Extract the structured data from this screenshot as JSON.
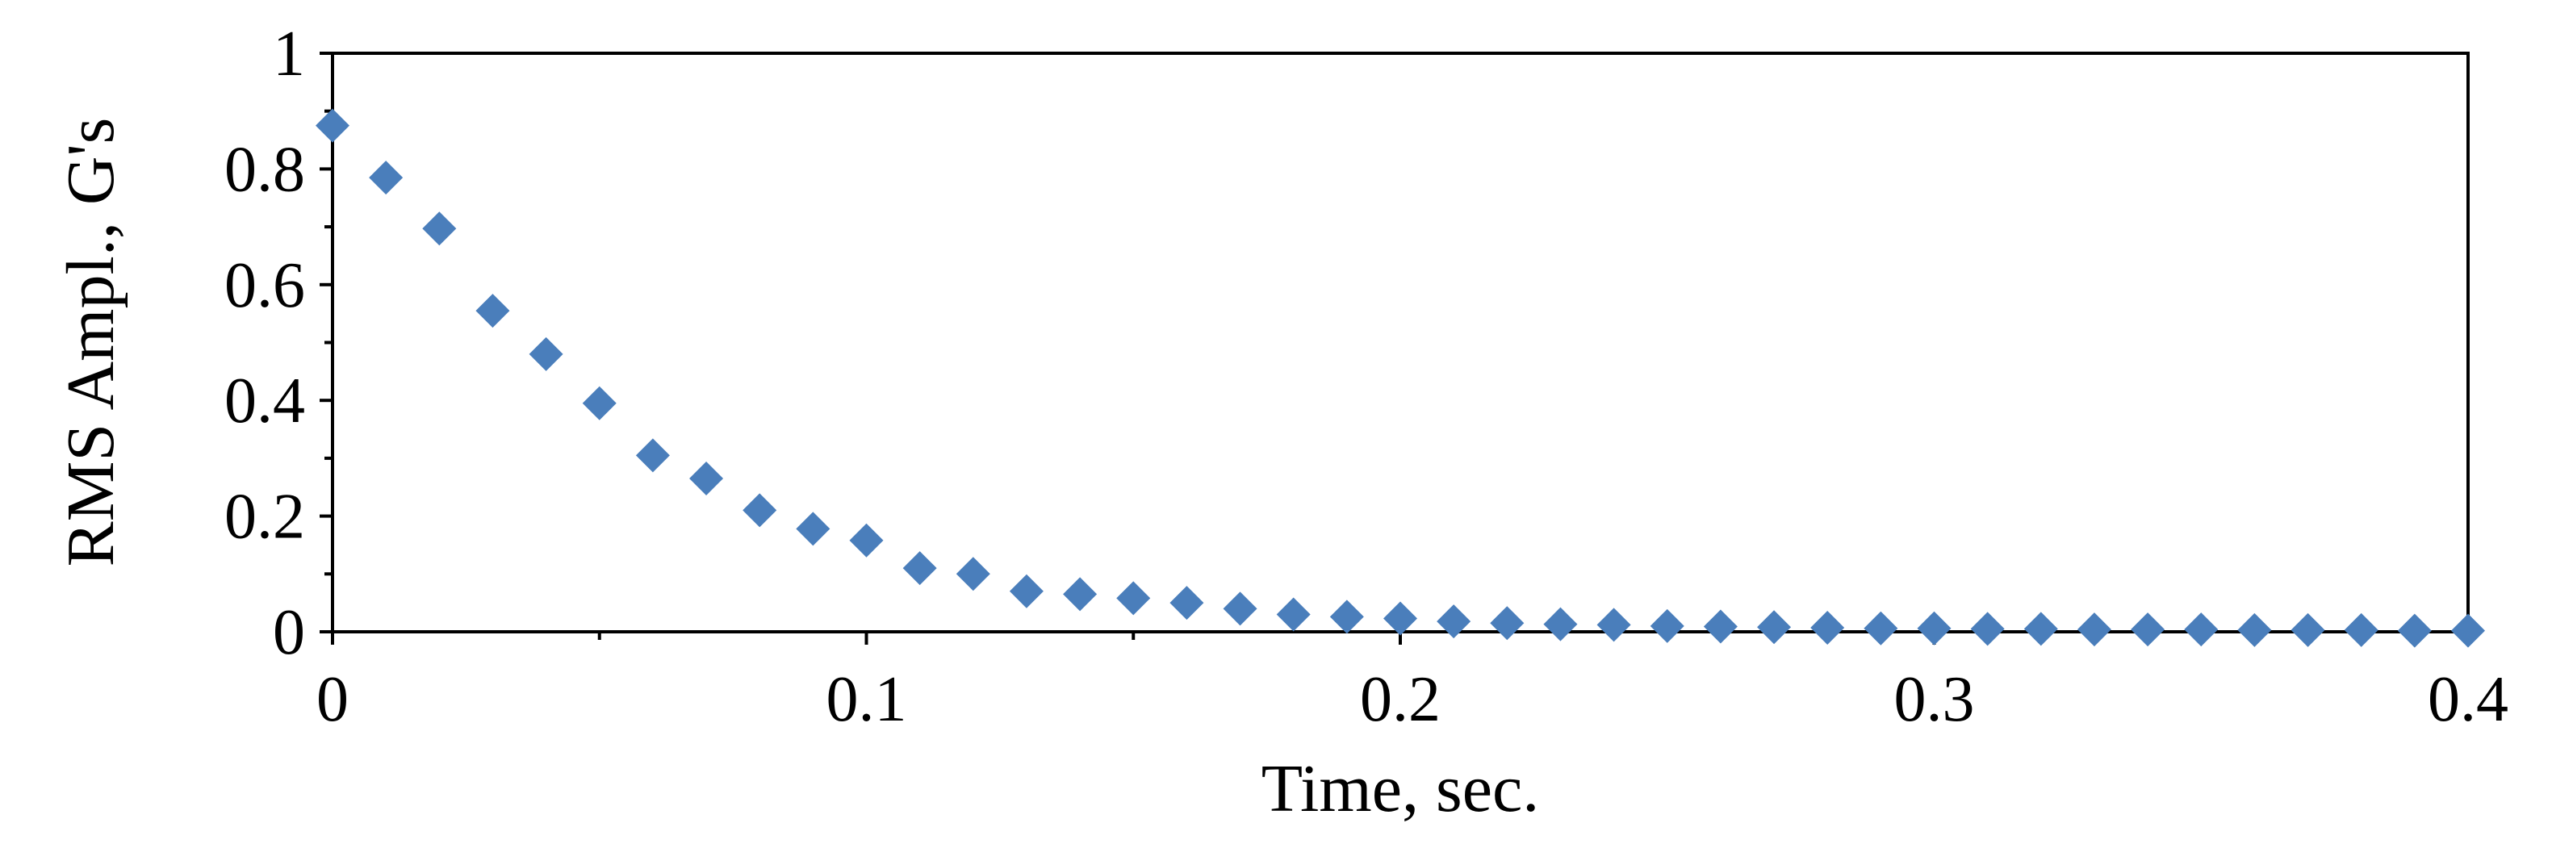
{
  "chart_data": {
    "type": "scatter",
    "title": "",
    "xlabel": "Time, sec.",
    "ylabel": "RMS Ampl., G's",
    "xlim": [
      0,
      0.4
    ],
    "ylim": [
      0,
      1
    ],
    "x_ticks": [
      "0",
      "0.1",
      "0.2",
      "0.3",
      "0.4"
    ],
    "y_ticks": [
      "0",
      "0.2",
      "0.4",
      "0.6",
      "0.8",
      "1"
    ],
    "grid": false,
    "legend": "none",
    "marker": "diamond",
    "marker_color": "#4a7ebb",
    "series": [
      {
        "x": [
          0,
          0.01,
          0.02,
          0.03,
          0.04,
          0.05,
          0.06,
          0.07,
          0.08,
          0.09,
          0.1,
          0.11,
          0.12,
          0.13,
          0.14,
          0.15,
          0.16,
          0.17,
          0.18,
          0.19,
          0.2,
          0.21,
          0.22,
          0.23,
          0.24,
          0.25,
          0.26,
          0.27,
          0.28,
          0.29,
          0.3,
          0.31,
          0.32,
          0.33,
          0.34,
          0.35,
          0.36,
          0.37,
          0.38,
          0.39,
          0.4
        ],
        "y": [
          0.875,
          0.785,
          0.697,
          0.555,
          0.48,
          0.395,
          0.305,
          0.265,
          0.21,
          0.178,
          0.158,
          0.11,
          0.1,
          0.07,
          0.065,
          0.058,
          0.05,
          0.04,
          0.03,
          0.026,
          0.023,
          0.018,
          0.015,
          0.013,
          0.012,
          0.01,
          0.009,
          0.008,
          0.007,
          0.006,
          0.006,
          0.005,
          0.005,
          0.004,
          0.004,
          0.004,
          0.003,
          0.003,
          0.003,
          0.002,
          0.002
        ]
      }
    ]
  }
}
